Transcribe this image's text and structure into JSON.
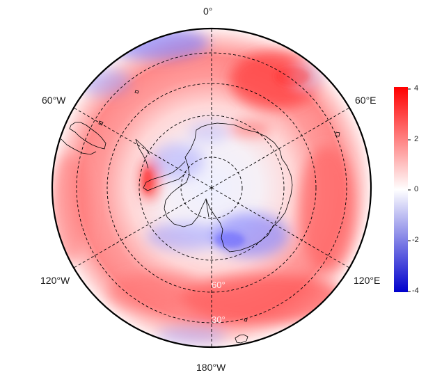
{
  "map": {
    "projection": "south-polar-stereographic",
    "longitude_labels": {
      "top": "0°",
      "upper_left": "60°W",
      "upper_right": "60°E",
      "lower_left": "120°W",
      "lower_right": "120°E",
      "bottom": "180°W"
    },
    "latitude_labels": [
      "60°",
      "30°"
    ],
    "grid": true,
    "grid_style": "dashed",
    "coastlines": true
  },
  "colorbar": {
    "ticks": [
      "4",
      "2",
      "0",
      "-2",
      "-4"
    ],
    "min": -4,
    "max": 4,
    "colors": {
      "low": "#0000cc",
      "mid": "#ffffff",
      "high": "#ff0000"
    },
    "placement": "right"
  }
}
